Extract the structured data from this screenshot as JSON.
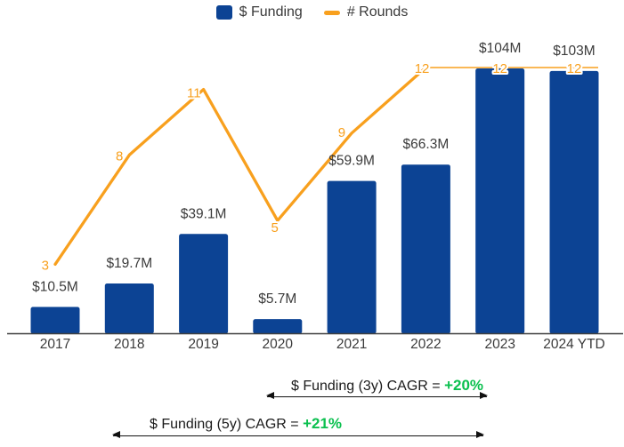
{
  "legend": {
    "items": [
      {
        "label": "$ Funding",
        "swatch": "square",
        "color": "#0c4394"
      },
      {
        "label": "# Rounds",
        "swatch": "line",
        "color": "#f8a01e"
      }
    ]
  },
  "chart_data": {
    "type": "combo-bar-line",
    "categories": [
      "2017",
      "2018",
      "2019",
      "2020",
      "2021",
      "2022",
      "2023",
      "2024 YTD"
    ],
    "series": [
      {
        "name": "$ Funding",
        "type": "bar",
        "color": "#0c4394",
        "unit": "USD millions",
        "values": [
          10.5,
          19.7,
          39.1,
          5.7,
          59.9,
          66.3,
          104,
          103
        ],
        "value_labels": [
          "$10.5M",
          "$19.7M",
          "$39.1M",
          "$5.7M",
          "$59.9M",
          "$66.3M",
          "$104M",
          "$103M"
        ]
      },
      {
        "name": "# Rounds",
        "type": "line",
        "color": "#f8a01e",
        "values": [
          3,
          8,
          11,
          5,
          9,
          12,
          12,
          12
        ]
      }
    ],
    "title": "",
    "xlabel": "",
    "ylabel": "",
    "grid": false,
    "legend_position": "top",
    "y_left_range": [
      0,
      110
    ],
    "y_right_range": [
      0,
      12
    ]
  },
  "annotations": [
    {
      "id": "cagr_3y",
      "label": "$ Funding (3y) CAGR = ",
      "value": "+20%",
      "value_color": "#0bc04f"
    },
    {
      "id": "cagr_5y",
      "label": "$ Funding (5y) CAGR = ",
      "value": "+21%",
      "value_color": "#0bc04f"
    }
  ],
  "colors": {
    "bar": "#0c4394",
    "line": "#f8a01e",
    "axis": "#3f3f3f",
    "label_text": "#3b3b3b",
    "cagr_green": "#0bc04f"
  }
}
